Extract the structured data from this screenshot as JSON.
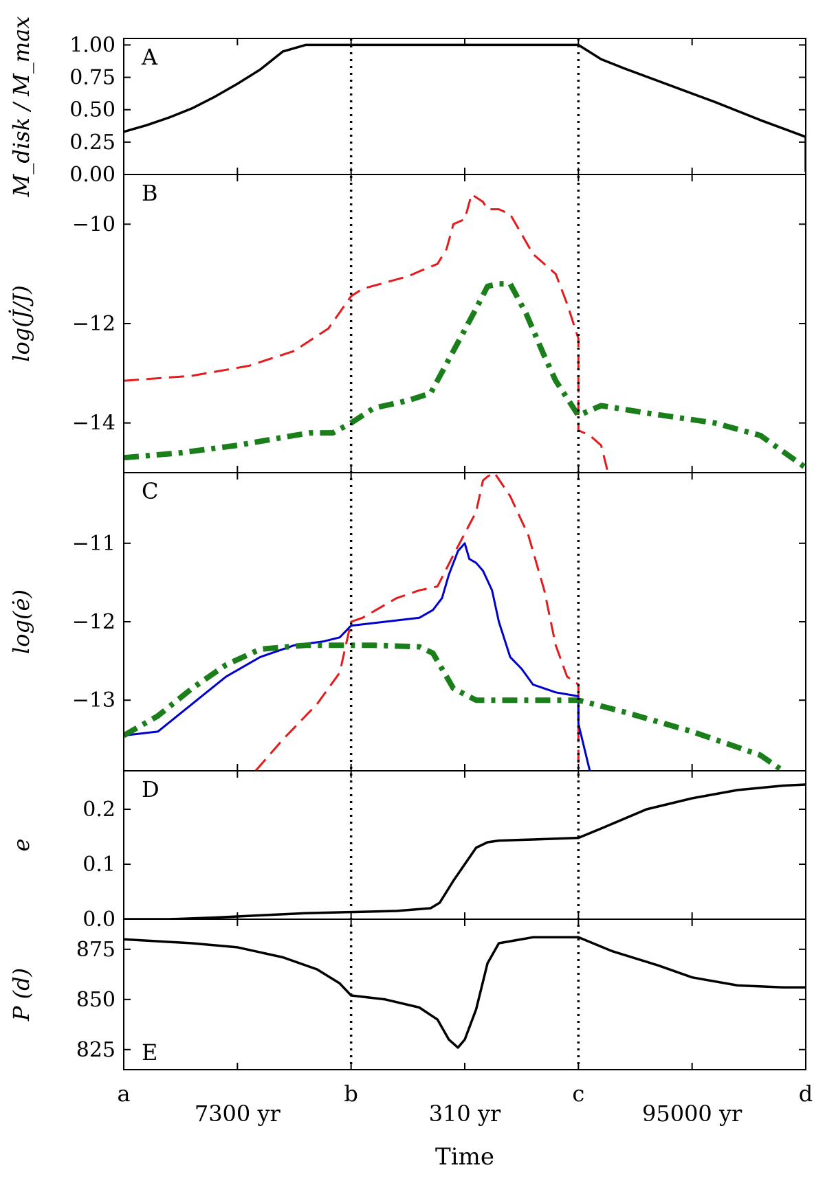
{
  "chart_data": {
    "type": "line",
    "x_axis": {
      "segment_labels": [
        "a",
        "b",
        "c",
        "d"
      ],
      "duration_labels": [
        "7300 yr",
        "310 yr",
        "95000 yr"
      ],
      "xlabel": "Time",
      "xlim": [
        0,
        3
      ],
      "boundaries": [
        1,
        2
      ]
    },
    "panels": [
      {
        "id": "A",
        "letter": "A",
        "ylabel": "M_disk / M_max",
        "ylim": [
          0,
          1.05
        ],
        "yticks": [
          0,
          0.25,
          0.5,
          0.75,
          1.0
        ],
        "ytick_labels": [
          "0.00",
          "0.25",
          "0.50",
          "0.75",
          "1.00"
        ],
        "series": [
          {
            "color": "#000000",
            "style": "solid",
            "width": 3.5,
            "points": [
              [
                0,
                0.33
              ],
              [
                0.1,
                0.38
              ],
              [
                0.2,
                0.44
              ],
              [
                0.3,
                0.51
              ],
              [
                0.4,
                0.6
              ],
              [
                0.5,
                0.7
              ],
              [
                0.6,
                0.81
              ],
              [
                0.7,
                0.95
              ],
              [
                0.8,
                1.0
              ],
              [
                1.0,
                1.0
              ],
              [
                2.0,
                1.0
              ],
              [
                2.1,
                0.89
              ],
              [
                2.2,
                0.82
              ],
              [
                2.4,
                0.69
              ],
              [
                2.6,
                0.56
              ],
              [
                2.8,
                0.42
              ],
              [
                3.0,
                0.29
              ],
              [
                3.0,
                0.02
              ]
            ]
          }
        ]
      },
      {
        "id": "B",
        "letter": "B",
        "ylabel": "log(J̇/J)",
        "ylim": [
          -15,
          -9
        ],
        "yticks": [
          -14,
          -12,
          -10
        ],
        "ytick_labels": [
          "−14",
          "−12",
          "−10"
        ],
        "series": [
          {
            "color": "#e41a1c",
            "style": "dashed",
            "width": 3,
            "points": [
              [
                0,
                -13.15
              ],
              [
                0.3,
                -13.05
              ],
              [
                0.55,
                -12.85
              ],
              [
                0.75,
                -12.55
              ],
              [
                0.9,
                -12.1
              ],
              [
                1.0,
                -11.45
              ],
              [
                1.05,
                -11.3
              ],
              [
                1.25,
                -11.05
              ],
              [
                1.3,
                -10.95
              ],
              [
                1.38,
                -10.8
              ],
              [
                1.42,
                -10.5
              ],
              [
                1.45,
                -10.0
              ],
              [
                1.5,
                -9.9
              ],
              [
                1.53,
                -9.4
              ],
              [
                1.58,
                -9.55
              ],
              [
                1.6,
                -9.7
              ],
              [
                1.65,
                -9.7
              ],
              [
                1.7,
                -9.8
              ],
              [
                1.75,
                -10.2
              ],
              [
                1.8,
                -10.6
              ],
              [
                1.9,
                -11.0
              ],
              [
                1.95,
                -11.6
              ],
              [
                2.0,
                -12.3
              ],
              [
                2.0,
                -12.55
              ],
              [
                2.0,
                -14.15
              ],
              [
                2.05,
                -14.25
              ],
              [
                2.1,
                -14.45
              ],
              [
                2.13,
                -15
              ]
            ]
          },
          {
            "color": "#1a7f1a",
            "style": "dashdot",
            "width": 8,
            "points": [
              [
                0,
                -14.7
              ],
              [
                0.25,
                -14.6
              ],
              [
                0.5,
                -14.45
              ],
              [
                0.75,
                -14.25
              ],
              [
                0.82,
                -14.2
              ],
              [
                0.92,
                -14.2
              ],
              [
                1.0,
                -14.0
              ],
              [
                1.1,
                -13.7
              ],
              [
                1.25,
                -13.55
              ],
              [
                1.35,
                -13.4
              ],
              [
                1.45,
                -12.55
              ],
              [
                1.55,
                -11.7
              ],
              [
                1.6,
                -11.25
              ],
              [
                1.65,
                -11.2
              ],
              [
                1.7,
                -11.2
              ],
              [
                1.77,
                -11.8
              ],
              [
                1.85,
                -12.65
              ],
              [
                1.9,
                -13.15
              ],
              [
                1.95,
                -13.5
              ],
              [
                2.0,
                -13.85
              ],
              [
                2.1,
                -13.65
              ],
              [
                2.3,
                -13.8
              ],
              [
                2.6,
                -14.0
              ],
              [
                2.8,
                -14.25
              ],
              [
                3.0,
                -14.9
              ]
            ]
          }
        ]
      },
      {
        "id": "C",
        "letter": "C",
        "ylabel": "log(ė)",
        "ylim": [
          -13.9,
          -10.1
        ],
        "yticks": [
          -13,
          -12,
          -11
        ],
        "ytick_labels": [
          "−13",
          "−12",
          "−11"
        ],
        "series": [
          {
            "color": "#e41a1c",
            "style": "dashed",
            "width": 3,
            "points": [
              [
                0.58,
                -13.9
              ],
              [
                0.7,
                -13.5
              ],
              [
                0.85,
                -13.05
              ],
              [
                0.95,
                -12.65
              ],
              [
                1.0,
                -12.0
              ],
              [
                1.05,
                -11.95
              ],
              [
                1.2,
                -11.7
              ],
              [
                1.3,
                -11.6
              ],
              [
                1.38,
                -11.55
              ],
              [
                1.45,
                -11.15
              ],
              [
                1.55,
                -10.6
              ],
              [
                1.58,
                -10.2
              ],
              [
                1.6,
                -10.15
              ],
              [
                1.63,
                -10.1
              ],
              [
                1.7,
                -10.4
              ],
              [
                1.78,
                -10.9
              ],
              [
                1.85,
                -11.6
              ],
              [
                1.9,
                -12.3
              ],
              [
                1.95,
                -12.7
              ],
              [
                2.0,
                -12.8
              ],
              [
                2.0,
                -13.8
              ]
            ]
          },
          {
            "color": "#0000cc",
            "style": "solid",
            "width": 3,
            "points": [
              [
                0,
                -13.45
              ],
              [
                0.15,
                -13.4
              ],
              [
                0.3,
                -13.05
              ],
              [
                0.45,
                -12.7
              ],
              [
                0.6,
                -12.45
              ],
              [
                0.75,
                -12.3
              ],
              [
                0.88,
                -12.25
              ],
              [
                0.95,
                -12.2
              ],
              [
                1.0,
                -12.05
              ],
              [
                1.15,
                -12.0
              ],
              [
                1.3,
                -11.95
              ],
              [
                1.36,
                -11.85
              ],
              [
                1.4,
                -11.7
              ],
              [
                1.43,
                -11.4
              ],
              [
                1.47,
                -11.1
              ],
              [
                1.5,
                -11.0
              ],
              [
                1.52,
                -11.2
              ],
              [
                1.55,
                -11.25
              ],
              [
                1.58,
                -11.35
              ],
              [
                1.62,
                -11.6
              ],
              [
                1.65,
                -12.0
              ],
              [
                1.7,
                -12.45
              ],
              [
                1.75,
                -12.6
              ],
              [
                1.8,
                -12.8
              ],
              [
                1.9,
                -12.9
              ],
              [
                2.0,
                -12.95
              ],
              [
                2.0,
                -13.3
              ],
              [
                2.05,
                -13.9
              ]
            ]
          },
          {
            "color": "#1a7f1a",
            "style": "dashdot",
            "width": 8,
            "points": [
              [
                0,
                -13.45
              ],
              [
                0.15,
                -13.2
              ],
              [
                0.3,
                -12.85
              ],
              [
                0.45,
                -12.55
              ],
              [
                0.6,
                -12.35
              ],
              [
                0.8,
                -12.3
              ],
              [
                1.0,
                -12.3
              ],
              [
                1.1,
                -12.3
              ],
              [
                1.3,
                -12.32
              ],
              [
                1.36,
                -12.4
              ],
              [
                1.4,
                -12.6
              ],
              [
                1.45,
                -12.85
              ],
              [
                1.55,
                -13.0
              ],
              [
                1.7,
                -13.0
              ],
              [
                2.0,
                -13.0
              ],
              [
                2.2,
                -13.15
              ],
              [
                2.5,
                -13.4
              ],
              [
                2.8,
                -13.7
              ],
              [
                2.9,
                -13.9
              ]
            ]
          }
        ]
      },
      {
        "id": "D",
        "letter": "D",
        "ylabel": "e",
        "ylim": [
          0,
          0.27
        ],
        "yticks": [
          0,
          0.1,
          0.2
        ],
        "ytick_labels": [
          "0.0",
          "0.1",
          "0.2"
        ],
        "series": [
          {
            "color": "#000000",
            "style": "solid",
            "width": 3.5,
            "points": [
              [
                0,
                0.0
              ],
              [
                0.2,
                0.0
              ],
              [
                0.4,
                0.003
              ],
              [
                0.6,
                0.007
              ],
              [
                0.8,
                0.011
              ],
              [
                1.0,
                0.013
              ],
              [
                1.2,
                0.015
              ],
              [
                1.35,
                0.02
              ],
              [
                1.39,
                0.03
              ],
              [
                1.45,
                0.07
              ],
              [
                1.5,
                0.1
              ],
              [
                1.55,
                0.13
              ],
              [
                1.6,
                0.14
              ],
              [
                1.65,
                0.143
              ],
              [
                1.8,
                0.145
              ],
              [
                2.0,
                0.148
              ],
              [
                2.1,
                0.165
              ],
              [
                2.3,
                0.2
              ],
              [
                2.5,
                0.22
              ],
              [
                2.7,
                0.235
              ],
              [
                2.9,
                0.243
              ],
              [
                3.0,
                0.245
              ]
            ]
          }
        ]
      },
      {
        "id": "E",
        "letter": "E",
        "ylabel": "P (d)",
        "ylim": [
          815,
          890
        ],
        "yticks": [
          825,
          850,
          875
        ],
        "ytick_labels": [
          "825",
          "850",
          "875"
        ],
        "series": [
          {
            "color": "#000000",
            "style": "solid",
            "width": 3.5,
            "points": [
              [
                0,
                880
              ],
              [
                0.3,
                878
              ],
              [
                0.5,
                876
              ],
              [
                0.7,
                871
              ],
              [
                0.85,
                865
              ],
              [
                0.95,
                858
              ],
              [
                1.0,
                852
              ],
              [
                1.15,
                850
              ],
              [
                1.3,
                846
              ],
              [
                1.38,
                840
              ],
              [
                1.43,
                830
              ],
              [
                1.47,
                826
              ],
              [
                1.5,
                830
              ],
              [
                1.55,
                845
              ],
              [
                1.6,
                868
              ],
              [
                1.65,
                878
              ],
              [
                1.8,
                881
              ],
              [
                2.0,
                881
              ],
              [
                2.15,
                874
              ],
              [
                2.35,
                867
              ],
              [
                2.5,
                861
              ],
              [
                2.7,
                857
              ],
              [
                2.9,
                856
              ],
              [
                3.0,
                856
              ]
            ]
          }
        ]
      }
    ]
  }
}
